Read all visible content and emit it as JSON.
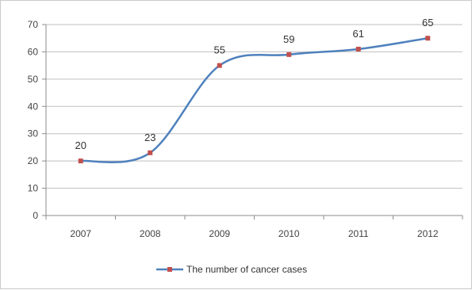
{
  "chart_data": {
    "type": "line",
    "title": "",
    "xlabel": "",
    "ylabel": "",
    "categories": [
      "2007",
      "2008",
      "2009",
      "2010",
      "2011",
      "2012"
    ],
    "series": [
      {
        "name": "The number of cancer cases",
        "values": [
          20,
          23,
          55,
          59,
          61,
          65
        ],
        "line_color": "#4F81BD",
        "marker_color": "#C0504D"
      }
    ],
    "data_labels": [
      "20",
      "23",
      "55",
      "59",
      "61",
      "65"
    ],
    "ylim": [
      0,
      70
    ],
    "yticks": [
      "0",
      "10",
      "20",
      "30",
      "40",
      "50",
      "60",
      "70"
    ],
    "grid": true,
    "grid_color": "#BFBFBF",
    "smooth": true,
    "legend": {
      "position": "bottom",
      "entry": "The number of cancer cases"
    }
  }
}
